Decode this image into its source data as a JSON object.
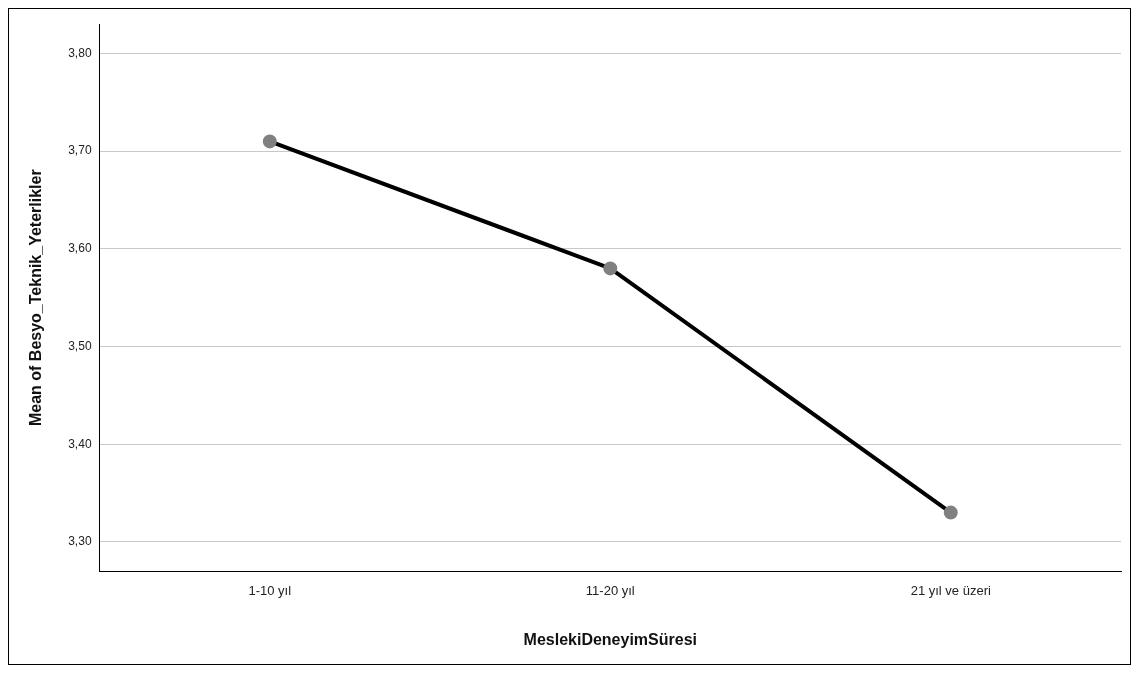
{
  "chart_data": {
    "type": "line",
    "xlabel": "MeslekiDeneyimSüresi",
    "ylabel": "Mean of Besyo_Teknik_Yeterlikler",
    "categories": [
      "1-10 yıl",
      "11-20 yıl",
      "21 yıl ve üzeri"
    ],
    "series": [
      {
        "color": "#000000",
        "values": [
          3.71,
          3.58,
          3.33
        ]
      }
    ],
    "ylim": [
      3.27,
      3.83
    ],
    "yticks": [
      {
        "value": 3.3,
        "label": "3,30"
      },
      {
        "value": 3.4,
        "label": "3,40"
      },
      {
        "value": 3.5,
        "label": "3,50"
      },
      {
        "value": 3.6,
        "label": "3,60"
      },
      {
        "value": 3.7,
        "label": "3,70"
      },
      {
        "value": 3.8,
        "label": "3,80"
      }
    ],
    "grid": "y",
    "legend": false,
    "marker": "circle",
    "line_style": "solid"
  }
}
